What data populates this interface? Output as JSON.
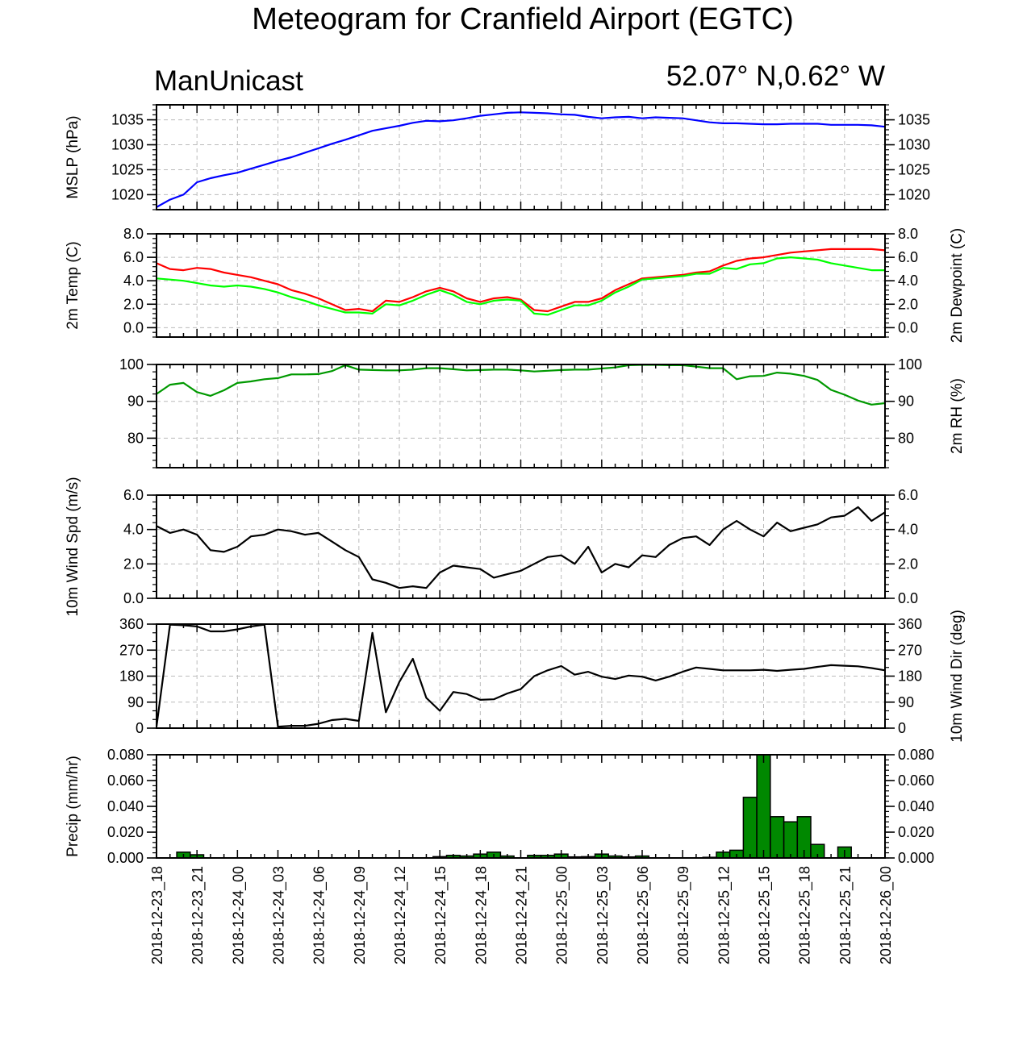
{
  "title": "Meteogram for Cranfield Airport (EGTC)",
  "left_string": "ManUnicast",
  "right_string": "52.07° N,0.62° W",
  "time_labels": [
    "2018-12-23_18",
    "2018-12-23_21",
    "2018-12-24_00",
    "2018-12-24_03",
    "2018-12-24_06",
    "2018-12-24_09",
    "2018-12-24_12",
    "2018-12-24_15",
    "2018-12-24_18",
    "2018-12-24_21",
    "2018-12-25_00",
    "2018-12-25_03",
    "2018-12-25_06",
    "2018-12-25_09",
    "2018-12-25_12",
    "2018-12-25_15",
    "2018-12-25_18",
    "2018-12-25_21",
    "2018-12-26_00"
  ],
  "chart_data": [
    {
      "type": "line",
      "ylabel_left": "MSLP (hPa)",
      "ylabel_right": "",
      "xlim_hours": [
        0,
        54
      ],
      "ylim": [
        1017,
        1038
      ],
      "yticks": [
        1020,
        1025,
        1030,
        1035
      ],
      "yticklabels": [
        "1020",
        "1025",
        "1030",
        "1035"
      ],
      "right_ticklabels": true,
      "minor_step": 1,
      "grid": true,
      "series": [
        {
          "color": "#0000ff",
          "x_hours": [
            0,
            1,
            2,
            3,
            4,
            5,
            6,
            7,
            8,
            9,
            10,
            11,
            12,
            13,
            14,
            15,
            16,
            17,
            18,
            19,
            20,
            21,
            22,
            23,
            24,
            25,
            26,
            27,
            28,
            29,
            30,
            31,
            32,
            33,
            34,
            35,
            36,
            37,
            38,
            39,
            40,
            41,
            42,
            43,
            44,
            45,
            46,
            47,
            48,
            49,
            50,
            51,
            52,
            53,
            54
          ],
          "values": [
            1017.5,
            1019,
            1020,
            1022.5,
            1023.3,
            1023.9,
            1024.4,
            1025.2,
            1026,
            1026.8,
            1027.5,
            1028.4,
            1029.3,
            1030.2,
            1031,
            1031.9,
            1032.8,
            1033.3,
            1033.8,
            1034.4,
            1034.8,
            1034.7,
            1034.9,
            1035.3,
            1035.8,
            1036.1,
            1036.4,
            1036.5,
            1036.4,
            1036.3,
            1036.1,
            1036,
            1035.6,
            1035.3,
            1035.5,
            1035.6,
            1035.3,
            1035.5,
            1035.4,
            1035.3,
            1034.9,
            1034.5,
            1034.3,
            1034.3,
            1034.2,
            1034.1,
            1034.1,
            1034.2,
            1034.2,
            1034.2,
            1034,
            1034,
            1034,
            1033.9,
            1033.6
          ]
        }
      ]
    },
    {
      "type": "line",
      "ylabel_left": "2m Temp (C)",
      "ylabel_right": "2m Dewpoint (C)",
      "xlim_hours": [
        0,
        54
      ],
      "ylim": [
        -0.8,
        8.0
      ],
      "yticks": [
        0,
        2,
        4,
        6,
        8
      ],
      "yticklabels": [
        "0.0",
        "2.0",
        "4.0",
        "6.0",
        "8.0"
      ],
      "right_ticklabels": true,
      "minor_step": 0.4,
      "grid": true,
      "series": [
        {
          "color": "#ff0000",
          "x_hours": [
            0,
            1,
            2,
            3,
            4,
            5,
            6,
            7,
            8,
            9,
            10,
            11,
            12,
            13,
            14,
            15,
            16,
            17,
            18,
            19,
            20,
            21,
            22,
            23,
            24,
            25,
            26,
            27,
            28,
            29,
            30,
            31,
            32,
            33,
            34,
            35,
            36,
            37,
            38,
            39,
            40,
            41,
            42,
            43,
            44,
            45,
            46,
            47,
            48,
            49,
            50,
            51,
            52,
            53,
            54
          ],
          "values": [
            5.5,
            5.0,
            4.9,
            5.1,
            5.0,
            4.7,
            4.5,
            4.3,
            4.0,
            3.7,
            3.2,
            2.9,
            2.5,
            2.0,
            1.5,
            1.6,
            1.4,
            2.3,
            2.2,
            2.6,
            3.1,
            3.4,
            3.1,
            2.5,
            2.2,
            2.5,
            2.6,
            2.4,
            1.5,
            1.4,
            1.8,
            2.2,
            2.2,
            2.5,
            3.2,
            3.7,
            4.2,
            4.3,
            4.4,
            4.5,
            4.7,
            4.8,
            5.3,
            5.7,
            5.9,
            6.0,
            6.2,
            6.4,
            6.5,
            6.6,
            6.7,
            6.7,
            6.7,
            6.7,
            6.6
          ]
        },
        {
          "color": "#00ff00",
          "x_hours": [
            0,
            1,
            2,
            3,
            4,
            5,
            6,
            7,
            8,
            9,
            10,
            11,
            12,
            13,
            14,
            15,
            16,
            17,
            18,
            19,
            20,
            21,
            22,
            23,
            24,
            25,
            26,
            27,
            28,
            29,
            30,
            31,
            32,
            33,
            34,
            35,
            36,
            37,
            38,
            39,
            40,
            41,
            42,
            43,
            44,
            45,
            46,
            47,
            48,
            49,
            50,
            51,
            52,
            53,
            54
          ],
          "values": [
            4.2,
            4.1,
            4.0,
            3.8,
            3.6,
            3.5,
            3.6,
            3.5,
            3.3,
            3.0,
            2.6,
            2.3,
            1.9,
            1.6,
            1.3,
            1.3,
            1.2,
            2.0,
            1.9,
            2.3,
            2.8,
            3.2,
            2.8,
            2.2,
            2.0,
            2.3,
            2.4,
            2.3,
            1.2,
            1.1,
            1.5,
            1.9,
            1.9,
            2.3,
            3.0,
            3.5,
            4.1,
            4.2,
            4.3,
            4.4,
            4.6,
            4.6,
            5.1,
            5.0,
            5.4,
            5.5,
            5.9,
            6.0,
            5.9,
            5.8,
            5.5,
            5.3,
            5.1,
            4.9,
            4.9
          ]
        }
      ]
    },
    {
      "type": "line",
      "ylabel_left": "",
      "ylabel_right": "2m RH (%)",
      "xlim_hours": [
        0,
        54
      ],
      "ylim": [
        72,
        100
      ],
      "yticks": [
        80,
        90,
        100
      ],
      "yticklabels": [
        "80",
        "90",
        "100"
      ],
      "right_ticklabels": true,
      "minor_step": 2,
      "grid": true,
      "series": [
        {
          "color": "#009900",
          "x_hours": [
            0,
            1,
            2,
            3,
            4,
            5,
            6,
            7,
            8,
            9,
            10,
            11,
            12,
            13,
            14,
            15,
            16,
            17,
            18,
            19,
            20,
            21,
            22,
            23,
            24,
            25,
            26,
            27,
            28,
            29,
            30,
            31,
            32,
            33,
            34,
            35,
            36,
            37,
            38,
            39,
            40,
            41,
            42,
            43,
            44,
            45,
            46,
            47,
            48,
            49,
            50,
            51,
            52,
            53,
            54
          ],
          "values": [
            92,
            94.5,
            95,
            92.5,
            91.5,
            93,
            95,
            95.4,
            96,
            96.3,
            97.3,
            97.3,
            97.4,
            98.2,
            99.8,
            98.6,
            98.5,
            98.4,
            98.4,
            98.6,
            99,
            99,
            98.7,
            98.4,
            98.5,
            98.6,
            98.6,
            98.4,
            98.1,
            98.3,
            98.5,
            98.6,
            98.6,
            98.9,
            99.2,
            99.8,
            99.9,
            99.9,
            99.8,
            99.8,
            99.4,
            99,
            99,
            96,
            96.8,
            96.9,
            97.8,
            97.5,
            96.9,
            95.8,
            93.1,
            91.8,
            90.2,
            89.1,
            89.5
          ]
        }
      ]
    },
    {
      "type": "line",
      "ylabel_left": "10m Wind Spd (m/s)",
      "ylabel_right": "",
      "xlim_hours": [
        0,
        54
      ],
      "ylim": [
        0,
        6.0
      ],
      "yticks": [
        0,
        2,
        4,
        6
      ],
      "yticklabels": [
        "0.0",
        "2.0",
        "4.0",
        "6.0"
      ],
      "right_ticklabels": true,
      "minor_step": 0.4,
      "grid": true,
      "series": [
        {
          "color": "#000000",
          "x_hours": [
            0,
            1,
            2,
            3,
            4,
            5,
            6,
            7,
            8,
            9,
            10,
            11,
            12,
            13,
            14,
            15,
            16,
            17,
            18,
            19,
            20,
            21,
            22,
            23,
            24,
            25,
            26,
            27,
            28,
            29,
            30,
            31,
            32,
            33,
            34,
            35,
            36,
            37,
            38,
            39,
            40,
            41,
            42,
            43,
            44,
            45,
            46,
            47,
            48,
            49,
            50,
            51,
            52,
            53,
            54
          ],
          "values": [
            4.2,
            3.8,
            4.0,
            3.7,
            2.8,
            2.7,
            3.0,
            3.6,
            3.7,
            4.0,
            3.9,
            3.7,
            3.8,
            3.3,
            2.8,
            2.4,
            1.1,
            0.9,
            0.6,
            0.7,
            0.6,
            1.5,
            1.9,
            1.8,
            1.7,
            1.2,
            1.4,
            1.6,
            2.0,
            2.4,
            2.5,
            2.0,
            3.0,
            1.5,
            2.0,
            1.8,
            2.5,
            2.4,
            3.1,
            3.5,
            3.6,
            3.1,
            4.0,
            4.5,
            4.0,
            3.6,
            4.4,
            3.9,
            4.1,
            4.3,
            4.7,
            4.8,
            5.3,
            4.5,
            5.0
          ]
        }
      ]
    },
    {
      "type": "line",
      "ylabel_left": "",
      "ylabel_right": "10m Wind Dir (deg)",
      "xlim_hours": [
        0,
        54
      ],
      "ylim": [
        0,
        360
      ],
      "yticks": [
        0,
        90,
        180,
        270,
        360
      ],
      "yticklabels": [
        "0",
        "90",
        "180",
        "270",
        "360"
      ],
      "right_ticklabels": true,
      "minor_step": 30,
      "grid": true,
      "series": [
        {
          "color": "#000000",
          "x_hours": [
            0,
            1,
            2,
            3,
            4,
            5,
            6,
            7,
            8,
            9,
            10,
            11,
            12,
            13,
            14,
            15,
            16,
            17,
            18,
            19,
            20,
            21,
            22,
            23,
            24,
            25,
            26,
            27,
            28,
            29,
            30,
            31,
            32,
            33,
            34,
            35,
            36,
            37,
            38,
            39,
            40,
            41,
            42,
            43,
            44,
            45,
            46,
            47,
            48,
            49,
            50,
            51,
            52,
            53,
            54
          ],
          "values": [
            5,
            358,
            356,
            352,
            335,
            335,
            342,
            352,
            358,
            5,
            8,
            8,
            15,
            28,
            32,
            25,
            330,
            55,
            160,
            240,
            105,
            60,
            125,
            118,
            98,
            100,
            120,
            135,
            180,
            200,
            215,
            185,
            195,
            178,
            170,
            182,
            178,
            165,
            178,
            195,
            210,
            205,
            200,
            200,
            200,
            202,
            198,
            202,
            205,
            212,
            218,
            216,
            214,
            208,
            200
          ]
        }
      ]
    },
    {
      "type": "bar",
      "ylabel_left": "Precip (mm/hr)",
      "ylabel_right": "",
      "xlim_hours": [
        0,
        54
      ],
      "ylim": [
        0,
        0.08
      ],
      "yticks": [
        0,
        0.02,
        0.04,
        0.06,
        0.08
      ],
      "yticklabels": [
        "0.000",
        "0.020",
        "0.040",
        "0.060",
        "0.080"
      ],
      "right_ticklabels": true,
      "minor_step": 0.004,
      "grid": false,
      "bar_color": "#008800",
      "series": [
        {
          "x_hours": [
            2,
            3,
            21,
            22,
            23,
            24,
            25,
            26,
            28,
            29,
            30,
            31,
            32,
            33,
            34,
            35,
            36,
            41,
            42,
            43,
            44,
            45,
            46,
            47,
            48,
            49,
            50,
            51,
            52,
            53
          ],
          "values": [
            0.0045,
            0.0025,
            0.001,
            0.002,
            0.0015,
            0.003,
            0.0045,
            0.0015,
            0.002,
            0.002,
            0.003,
            0.0008,
            0.001,
            0.003,
            0.0015,
            0.0008,
            0.0015,
            0.0005,
            0.0045,
            0.006,
            0.047,
            0.08,
            0.032,
            0.028,
            0.032,
            0.0105,
            0.0,
            0.0085,
            0.0,
            0.0
          ]
        }
      ]
    }
  ]
}
